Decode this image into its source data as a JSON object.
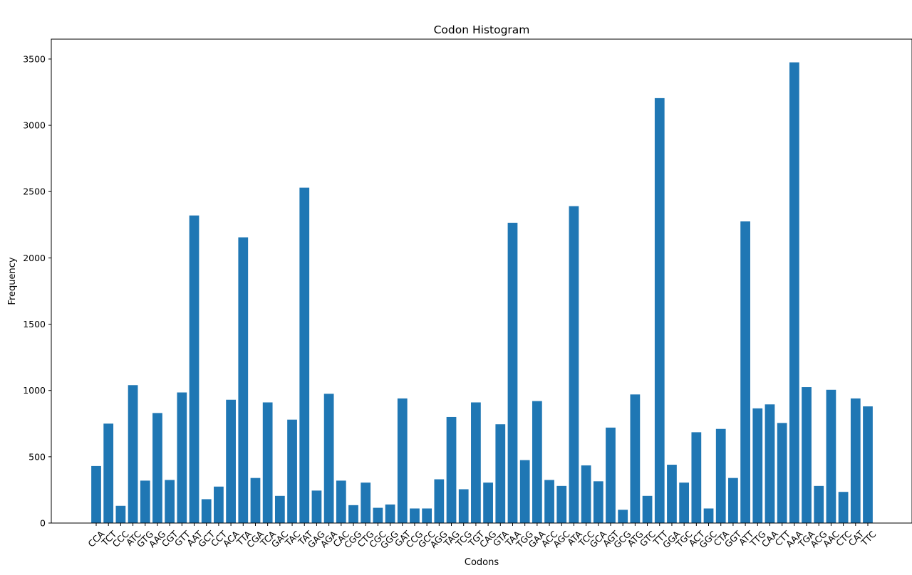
{
  "chart_data": {
    "type": "bar",
    "title": "Codon Histogram",
    "xlabel": "Codons",
    "ylabel": "Frequency",
    "ylim": [
      0,
      3650
    ],
    "yticks": [
      0,
      500,
      1000,
      1500,
      2000,
      2500,
      3000,
      3500
    ],
    "grid": false,
    "bar_color": "#1f77b4",
    "categories": [
      "CCA",
      "TCT",
      "CCC",
      "ATC",
      "GTG",
      "AAG",
      "CGT",
      "GTT",
      "AAT",
      "GCT",
      "CCT",
      "ACA",
      "TTA",
      "CGA",
      "TCA",
      "GAC",
      "TAC",
      "TAT",
      "GAG",
      "AGA",
      "CAC",
      "CGG",
      "CTG",
      "CGC",
      "GGG",
      "GAT",
      "CCG",
      "GCC",
      "AGG",
      "TAG",
      "TCG",
      "TGT",
      "CAG",
      "GTA",
      "TAA",
      "TGG",
      "GAA",
      "ACC",
      "AGC",
      "ATA",
      "TCC",
      "GCA",
      "AGT",
      "GCG",
      "ATG",
      "GTC",
      "TTT",
      "GGA",
      "TGC",
      "ACT",
      "GGC",
      "CTA",
      "GGT",
      "ATT",
      "TTG",
      "CAA",
      "CTT",
      "AAA",
      "TGA",
      "ACG",
      "AAC",
      "CTC",
      "CAT",
      "TTC"
    ],
    "values": [
      430,
      750,
      130,
      1040,
      320,
      830,
      325,
      985,
      2320,
      180,
      275,
      930,
      2155,
      340,
      910,
      205,
      780,
      2530,
      245,
      975,
      320,
      135,
      305,
      115,
      140,
      940,
      110,
      110,
      330,
      800,
      255,
      910,
      305,
      745,
      2265,
      475,
      920,
      325,
      280,
      2390,
      435,
      315,
      720,
      100,
      970,
      205,
      3205,
      440,
      305,
      685,
      110,
      710,
      340,
      2275,
      865,
      895,
      755,
      3475,
      1025,
      280,
      1005,
      235,
      940,
      880
    ]
  }
}
